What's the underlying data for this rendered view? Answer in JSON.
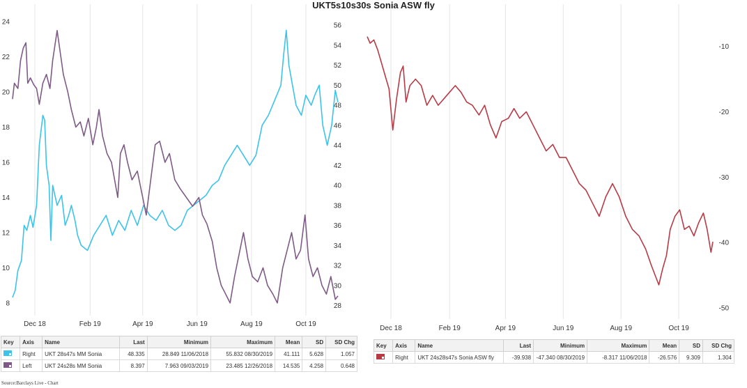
{
  "title": "UKT5s10s30s Sonia ASW fly",
  "source": "Source:Barclays Live - Chart",
  "chart_data": [
    {
      "type": "line",
      "x_tick_labels": [
        "Dec 18",
        "Feb 19",
        "Apr 19",
        "Jun 19",
        "Aug 19",
        "Oct 19"
      ],
      "x_range": [
        "2018-11-06",
        "2019-11-06"
      ],
      "y_left_ticks": [
        8,
        10,
        12,
        14,
        16,
        18,
        20,
        22,
        24
      ],
      "y_left_range": [
        7.4,
        24.6
      ],
      "y_right_ticks": [
        28,
        30,
        32,
        34,
        36,
        38,
        40,
        42,
        44,
        46,
        48,
        50,
        52,
        54,
        56
      ],
      "y_right_range": [
        27.2,
        57.4
      ],
      "grid": "vertical",
      "series": [
        {
          "name": "UKT 28s47s MM Sonia",
          "axis": "right",
          "color": "#3cc3ea",
          "points": [
            [
              "2018-11-06",
              28.8
            ],
            [
              "2018-11-09",
              29.5
            ],
            [
              "2018-11-12",
              31.5
            ],
            [
              "2018-11-16",
              32.5
            ],
            [
              "2018-11-19",
              36
            ],
            [
              "2018-11-22",
              35.5
            ],
            [
              "2018-11-26",
              37
            ],
            [
              "2018-11-29",
              35.8
            ],
            [
              "2018-12-03",
              38
            ],
            [
              "2018-12-06",
              44
            ],
            [
              "2018-12-10",
              47
            ],
            [
              "2018-12-12",
              46.5
            ],
            [
              "2018-12-14",
              42
            ],
            [
              "2018-12-17",
              40
            ],
            [
              "2018-12-19",
              34.5
            ],
            [
              "2018-12-21",
              40
            ],
            [
              "2018-12-26",
              38
            ],
            [
              "2018-12-31",
              39
            ],
            [
              "2019-01-04",
              36
            ],
            [
              "2019-01-08",
              37
            ],
            [
              "2019-01-11",
              38
            ],
            [
              "2019-01-15",
              36.5
            ],
            [
              "2019-01-18",
              35
            ],
            [
              "2019-01-22",
              34
            ],
            [
              "2019-01-29",
              33.5
            ],
            [
              "2019-02-05",
              35
            ],
            [
              "2019-02-12",
              36
            ],
            [
              "2019-02-19",
              37
            ],
            [
              "2019-02-26",
              35
            ],
            [
              "2019-03-05",
              36.5
            ],
            [
              "2019-03-12",
              35.5
            ],
            [
              "2019-03-19",
              37.5
            ],
            [
              "2019-03-26",
              36
            ],
            [
              "2019-04-02",
              38
            ],
            [
              "2019-04-09",
              37
            ],
            [
              "2019-04-16",
              36.5
            ],
            [
              "2019-04-23",
              37.5
            ],
            [
              "2019-04-30",
              36
            ],
            [
              "2019-05-07",
              35.5
            ],
            [
              "2019-05-14",
              36
            ],
            [
              "2019-05-21",
              37.5
            ],
            [
              "2019-05-28",
              38
            ],
            [
              "2019-06-04",
              38.5
            ],
            [
              "2019-06-11",
              39
            ],
            [
              "2019-06-18",
              40
            ],
            [
              "2019-06-25",
              40.5
            ],
            [
              "2019-07-02",
              42
            ],
            [
              "2019-07-09",
              43
            ],
            [
              "2019-07-16",
              44
            ],
            [
              "2019-07-23",
              43
            ],
            [
              "2019-07-30",
              42
            ],
            [
              "2019-08-06",
              43
            ],
            [
              "2019-08-13",
              46
            ],
            [
              "2019-08-20",
              47
            ],
            [
              "2019-08-27",
              48.5
            ],
            [
              "2019-09-03",
              50
            ],
            [
              "2019-09-06",
              53
            ],
            [
              "2019-09-09",
              55.5
            ],
            [
              "2019-09-12",
              52
            ],
            [
              "2019-09-16",
              50
            ],
            [
              "2019-09-20",
              48
            ],
            [
              "2019-09-26",
              47
            ],
            [
              "2019-10-01",
              49
            ],
            [
              "2019-10-07",
              48
            ],
            [
              "2019-10-11",
              49
            ],
            [
              "2019-10-16",
              50
            ],
            [
              "2019-10-20",
              46
            ],
            [
              "2019-10-25",
              44
            ],
            [
              "2019-10-30",
              46
            ],
            [
              "2019-11-03",
              49.5
            ],
            [
              "2019-11-06",
              48.3
            ]
          ]
        },
        {
          "name": "UKT 24s28s MM Sonia",
          "axis": "left",
          "color": "#7e5a86",
          "points": [
            [
              "2018-11-06",
              19.6
            ],
            [
              "2018-11-08",
              20.5
            ],
            [
              "2018-11-12",
              20.2
            ],
            [
              "2018-11-15",
              21.8
            ],
            [
              "2018-11-18",
              22.5
            ],
            [
              "2018-11-21",
              22.8
            ],
            [
              "2018-11-23",
              20.5
            ],
            [
              "2018-11-26",
              20.8
            ],
            [
              "2018-11-30",
              20.4
            ],
            [
              "2018-12-03",
              20.2
            ],
            [
              "2018-12-06",
              19.3
            ],
            [
              "2018-12-10",
              20.5
            ],
            [
              "2018-12-14",
              21
            ],
            [
              "2018-12-18",
              20.2
            ],
            [
              "2018-12-21",
              21.8
            ],
            [
              "2018-12-26",
              23.5
            ],
            [
              "2019-01-02",
              21
            ],
            [
              "2019-01-07",
              20
            ],
            [
              "2019-01-11",
              19
            ],
            [
              "2019-01-16",
              18
            ],
            [
              "2019-01-21",
              18.3
            ],
            [
              "2019-01-25",
              17.5
            ],
            [
              "2019-01-30",
              18.5
            ],
            [
              "2019-02-04",
              17
            ],
            [
              "2019-02-08",
              18
            ],
            [
              "2019-02-11",
              19
            ],
            [
              "2019-02-15",
              17.5
            ],
            [
              "2019-02-20",
              16.5
            ],
            [
              "2019-02-25",
              16
            ],
            [
              "2019-03-04",
              14
            ],
            [
              "2019-03-07",
              16.5
            ],
            [
              "2019-03-11",
              17
            ],
            [
              "2019-03-15",
              16
            ],
            [
              "2019-03-20",
              15
            ],
            [
              "2019-03-26",
              15.5
            ],
            [
              "2019-04-01",
              14
            ],
            [
              "2019-04-05",
              13
            ],
            [
              "2019-04-10",
              15
            ],
            [
              "2019-04-15",
              17
            ],
            [
              "2019-04-20",
              17.2
            ],
            [
              "2019-04-26",
              16
            ],
            [
              "2019-05-01",
              16.5
            ],
            [
              "2019-05-07",
              15
            ],
            [
              "2019-05-13",
              14.5
            ],
            [
              "2019-05-20",
              14
            ],
            [
              "2019-05-27",
              13.5
            ],
            [
              "2019-06-03",
              14
            ],
            [
              "2019-06-07",
              13
            ],
            [
              "2019-06-12",
              12.5
            ],
            [
              "2019-06-18",
              11.5
            ],
            [
              "2019-06-23",
              10
            ],
            [
              "2019-06-28",
              9
            ],
            [
              "2019-07-03",
              8.5
            ],
            [
              "2019-07-08",
              8
            ],
            [
              "2019-07-13",
              9.5
            ],
            [
              "2019-07-19",
              11
            ],
            [
              "2019-07-23",
              12
            ],
            [
              "2019-07-28",
              10.5
            ],
            [
              "2019-08-02",
              9.5
            ],
            [
              "2019-08-08",
              9.2
            ],
            [
              "2019-08-14",
              10
            ],
            [
              "2019-08-19",
              9
            ],
            [
              "2019-08-25",
              8.5
            ],
            [
              "2019-08-30",
              8
            ],
            [
              "2019-09-05",
              10
            ],
            [
              "2019-09-10",
              11
            ],
            [
              "2019-09-15",
              12
            ],
            [
              "2019-09-20",
              10.5
            ],
            [
              "2019-09-25",
              11
            ],
            [
              "2019-09-30",
              13
            ],
            [
              "2019-10-04",
              10.5
            ],
            [
              "2019-10-09",
              9.5
            ],
            [
              "2019-10-14",
              10
            ],
            [
              "2019-10-19",
              9
            ],
            [
              "2019-10-24",
              8.5
            ],
            [
              "2019-10-29",
              9.5
            ],
            [
              "2019-11-03",
              8.2
            ],
            [
              "2019-11-06",
              8.4
            ]
          ]
        }
      ]
    },
    {
      "type": "line",
      "x_tick_labels": [
        "Dec 18",
        "Feb 19",
        "Apr 19",
        "Jun 19",
        "Aug 19",
        "Oct 19"
      ],
      "x_range": [
        "2018-11-06",
        "2019-11-06"
      ],
      "y_right_ticks": [
        -10,
        -20,
        -30,
        -40,
        -50
      ],
      "y_right_range": [
        -51.4,
        -4.6
      ],
      "grid": "vertical",
      "series": [
        {
          "name": "UKT 24s28s47s Sonia ASW fly",
          "axis": "right",
          "color": "#b73a45",
          "points": [
            [
              "2018-11-06",
              -8.5
            ],
            [
              "2018-11-09",
              -9.5
            ],
            [
              "2018-11-13",
              -9
            ],
            [
              "2018-11-17",
              -10.5
            ],
            [
              "2018-11-21",
              -12.5
            ],
            [
              "2018-11-25",
              -14.5
            ],
            [
              "2018-11-29",
              -16.5
            ],
            [
              "2018-12-03",
              -22.8
            ],
            [
              "2018-12-07",
              -18
            ],
            [
              "2018-12-11",
              -14
            ],
            [
              "2018-12-14",
              -13
            ],
            [
              "2018-12-17",
              -18.5
            ],
            [
              "2018-12-21",
              -16
            ],
            [
              "2018-12-27",
              -15
            ],
            [
              "2019-01-02",
              -16
            ],
            [
              "2019-01-08",
              -19
            ],
            [
              "2019-01-14",
              -17.5
            ],
            [
              "2019-01-20",
              -19
            ],
            [
              "2019-01-26",
              -18
            ],
            [
              "2019-02-01",
              -17
            ],
            [
              "2019-02-07",
              -16
            ],
            [
              "2019-02-13",
              -17
            ],
            [
              "2019-02-19",
              -18.5
            ],
            [
              "2019-02-25",
              -19
            ],
            [
              "2019-03-04",
              -20.5
            ],
            [
              "2019-03-10",
              -19
            ],
            [
              "2019-03-16",
              -22
            ],
            [
              "2019-03-22",
              -24
            ],
            [
              "2019-03-28",
              -21.5
            ],
            [
              "2019-04-04",
              -21
            ],
            [
              "2019-04-10",
              -19.5
            ],
            [
              "2019-04-16",
              -21
            ],
            [
              "2019-04-23",
              -20
            ],
            [
              "2019-04-30",
              -22
            ],
            [
              "2019-05-07",
              -24
            ],
            [
              "2019-05-14",
              -26
            ],
            [
              "2019-05-21",
              -25
            ],
            [
              "2019-05-28",
              -27
            ],
            [
              "2019-06-04",
              -27
            ],
            [
              "2019-06-11",
              -29
            ],
            [
              "2019-06-18",
              -31
            ],
            [
              "2019-06-25",
              -32
            ],
            [
              "2019-07-02",
              -34
            ],
            [
              "2019-07-09",
              -36
            ],
            [
              "2019-07-16",
              -33
            ],
            [
              "2019-07-23",
              -31
            ],
            [
              "2019-07-30",
              -33
            ],
            [
              "2019-08-06",
              -36
            ],
            [
              "2019-08-13",
              -38
            ],
            [
              "2019-08-20",
              -39
            ],
            [
              "2019-08-27",
              -41
            ],
            [
              "2019-09-02",
              -43.5
            ],
            [
              "2019-09-06",
              -45
            ],
            [
              "2019-09-10",
              -46.5
            ],
            [
              "2019-09-14",
              -44
            ],
            [
              "2019-09-18",
              -42
            ],
            [
              "2019-09-22",
              -38
            ],
            [
              "2019-09-27",
              -36
            ],
            [
              "2019-10-02",
              -35
            ],
            [
              "2019-10-07",
              -38
            ],
            [
              "2019-10-12",
              -37.5
            ],
            [
              "2019-10-17",
              -39
            ],
            [
              "2019-10-22",
              -37
            ],
            [
              "2019-10-27",
              -35.5
            ],
            [
              "2019-10-31",
              -38
            ],
            [
              "2019-11-04",
              -41.5
            ],
            [
              "2019-11-06",
              -39.9
            ]
          ]
        }
      ]
    }
  ],
  "left_table": {
    "headers": {
      "key": "Key",
      "axis": "Axis",
      "name": "Name",
      "last": "Last",
      "min": "Minimum",
      "max": "Maximum",
      "mean": "Mean",
      "sd": "SD",
      "sdchg": "SD Chg"
    },
    "rows": [
      {
        "color": "#3cc3ea",
        "axis": "Right",
        "name": "UKT 28s47s MM Sonia",
        "last": "48.335",
        "min": "28.849 11/06/2018",
        "max": "55.832 08/30/2019",
        "mean": "41.111",
        "sd": "5.628",
        "sdchg": "1.057"
      },
      {
        "color": "#7e5a86",
        "axis": "Left",
        "name": "UKT 24s28s MM Sonia",
        "last": "8.397",
        "min": "7.963 09/03/2019",
        "max": "23.485 12/26/2018",
        "mean": "14.535",
        "sd": "4.258",
        "sdchg": "0.648"
      }
    ]
  },
  "right_table": {
    "headers": {
      "key": "Key",
      "axis": "Axis",
      "name": "Name",
      "last": "Last",
      "min": "Minimum",
      "max": "Maximum",
      "mean": "Mean",
      "sd": "SD",
      "sdchg": "SD Chg"
    },
    "rows": [
      {
        "color": "#b73a45",
        "axis": "Right",
        "name": "UKT 24s28s47s Sonia ASW fly",
        "last": "-39.938",
        "min": "-47.340 08/30/2019",
        "max": "-8.317 11/06/2018",
        "mean": "-26.576",
        "sd": "9.309",
        "sdchg": "1.304"
      }
    ]
  }
}
